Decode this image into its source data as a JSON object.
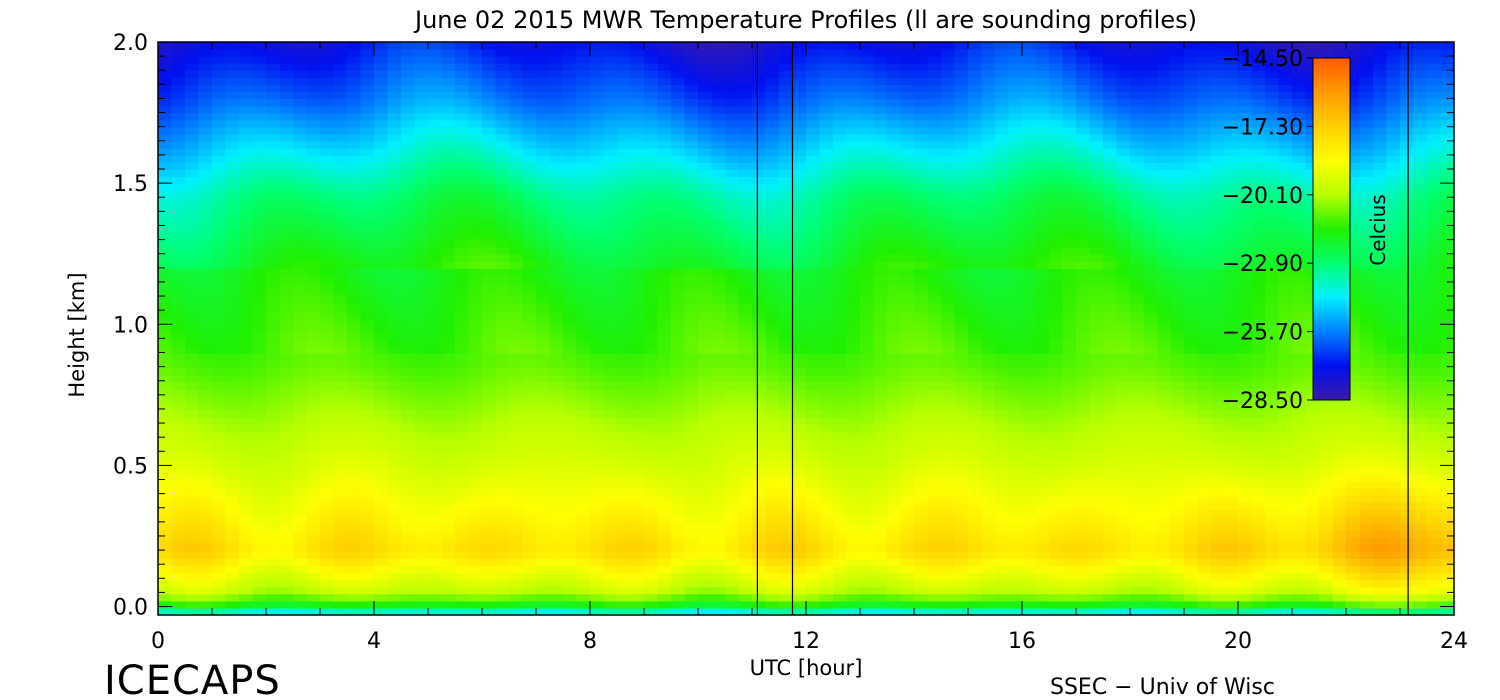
{
  "chart_data": {
    "type": "heatmap",
    "title": "June 02 2015 MWR Temperature Profiles (ll are sounding profiles)",
    "xlabel": "UTC [hour]",
    "ylabel": "Height [km]",
    "xlim": [
      0,
      24
    ],
    "ylim": [
      -0.03,
      2.0
    ],
    "x_ticks": [
      "0",
      "4",
      "8",
      "12",
      "16",
      "20",
      "24"
    ],
    "x_tick_values": [
      0,
      4,
      8,
      12,
      16,
      20,
      24
    ],
    "y_ticks": [
      "0.0",
      "0.5",
      "1.0",
      "1.5",
      "2.0"
    ],
    "y_tick_values": [
      0.0,
      0.5,
      1.0,
      1.5,
      2.0
    ],
    "sounding_times": [
      11.1,
      11.75,
      23.15
    ],
    "colorbar": {
      "label": "Celcius",
      "min": -28.5,
      "max": -14.5,
      "tick_values": [
        -14.5,
        -17.3,
        -20.1,
        -22.9,
        -25.7,
        -28.5
      ],
      "tick_labels": [
        "−14.50",
        "−17.30",
        "−20.10",
        "−22.90",
        "−25.70",
        "−28.50"
      ],
      "colors": [
        "#3a1aa8",
        "#0010f0",
        "#0080ff",
        "#00f0ff",
        "#00ff70",
        "#20f000",
        "#b8ff00",
        "#ffff00",
        "#ffd000",
        "#ff9a00",
        "#ff5a00"
      ]
    },
    "profile": {
      "height_km": [
        -0.03,
        0.0,
        0.05,
        0.2,
        0.5,
        0.85,
        1.2,
        1.45,
        1.6,
        1.8,
        2.0
      ],
      "temperature_c": [
        -25.0,
        -22.0,
        -20.0,
        -17.8,
        -19.5,
        -21.0,
        -21.8,
        -23.0,
        -24.3,
        -26.0,
        -27.3
      ]
    }
  },
  "footer": {
    "brand": "ICECAPS",
    "credit": "SSEC − Univ of Wisc"
  }
}
